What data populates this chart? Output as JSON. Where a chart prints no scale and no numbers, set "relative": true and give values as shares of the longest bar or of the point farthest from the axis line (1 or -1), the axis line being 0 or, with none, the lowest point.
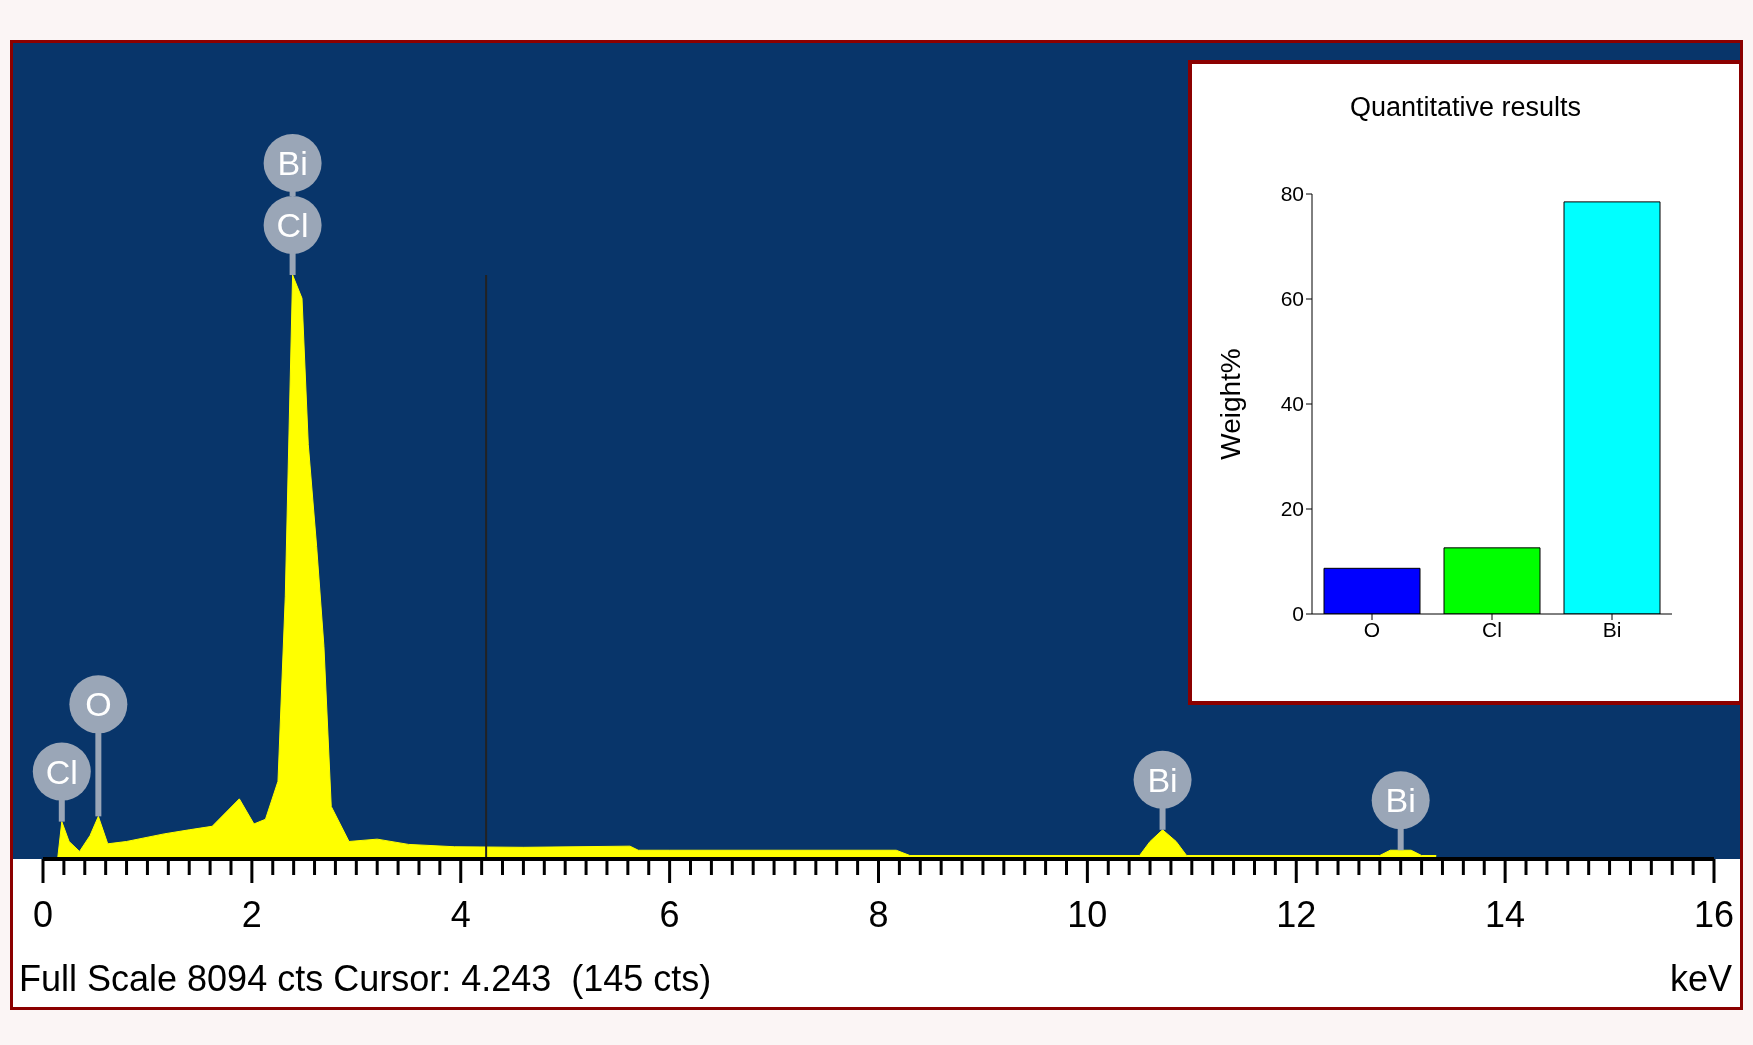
{
  "chart_data": [
    {
      "type": "area",
      "relative": true,
      "color": "#ffff00",
      "xlabel": "keV",
      "xlim": [
        0,
        16
      ],
      "x": [
        0.14,
        0.18,
        0.25,
        0.35,
        0.45,
        0.53,
        0.62,
        0.8,
        1.16,
        1.4,
        1.62,
        1.88,
        2.02,
        2.13,
        2.25,
        2.32,
        2.39,
        2.48,
        2.54,
        2.62,
        2.69,
        2.76,
        2.93,
        3.2,
        3.5,
        3.94,
        4.6,
        5.62,
        5.7,
        6.0,
        8.17,
        8.3,
        10.5,
        10.6,
        10.72,
        10.85,
        10.95,
        12.8,
        12.9,
        13.1,
        13.2,
        13.34
      ],
      "values": [
        0,
        0.064,
        0.03,
        0.013,
        0.04,
        0.073,
        0.026,
        0.03,
        0.043,
        0.05,
        0.056,
        0.103,
        0.06,
        0.068,
        0.133,
        0.45,
        1,
        0.96,
        0.71,
        0.535,
        0.364,
        0.09,
        0.03,
        0.034,
        0.025,
        0.021,
        0.02,
        0.022,
        0.015,
        0.015,
        0.015,
        0.006,
        0.006,
        0.03,
        0.05,
        0.03,
        0.006,
        0.006,
        0.015,
        0.015,
        0.006,
        0.006
      ],
      "xticks": [
        0,
        {
          "value": 0.2,
          "label": null
        },
        {
          "value": 0.4,
          "label": null
        },
        {
          "value": 0.6,
          "label": null
        },
        {
          "value": 0.8,
          "label": null
        },
        {
          "value": 1,
          "label": null
        },
        {
          "value": 1.2,
          "label": null
        },
        {
          "value": 1.4,
          "label": null
        },
        {
          "value": 1.6,
          "label": null
        },
        {
          "value": 1.8,
          "label": null
        },
        2,
        {
          "value": 2.2,
          "label": null
        },
        {
          "value": 2.4,
          "label": null
        },
        {
          "value": 2.6,
          "label": null
        },
        {
          "value": 2.8,
          "label": null
        },
        {
          "value": 3,
          "label": null
        },
        {
          "value": 3.2,
          "label": null
        },
        {
          "value": 3.4,
          "label": null
        },
        {
          "value": 3.6,
          "label": null
        },
        {
          "value": 3.8,
          "label": null
        },
        4,
        {
          "value": 4.2,
          "label": null
        },
        {
          "value": 4.4,
          "label": null
        },
        {
          "value": 4.6,
          "label": null
        },
        {
          "value": 4.8,
          "label": null
        },
        {
          "value": 5,
          "label": null
        },
        {
          "value": 5.2,
          "label": null
        },
        {
          "value": 5.4,
          "label": null
        },
        {
          "value": 5.6,
          "label": null
        },
        {
          "value": 5.8,
          "label": null
        },
        6,
        {
          "value": 6.2,
          "label": null
        },
        {
          "value": 6.4,
          "label": null
        },
        {
          "value": 6.6,
          "label": null
        },
        {
          "value": 6.8,
          "label": null
        },
        {
          "value": 7,
          "label": null
        },
        {
          "value": 7.2,
          "label": null
        },
        {
          "value": 7.4,
          "label": null
        },
        {
          "value": 7.6,
          "label": null
        },
        {
          "value": 7.8,
          "label": null
        },
        8,
        {
          "value": 8.2,
          "label": null
        },
        {
          "value": 8.4,
          "label": null
        },
        {
          "value": 8.6,
          "label": null
        },
        {
          "value": 8.8,
          "label": null
        },
        {
          "value": 9,
          "label": null
        },
        {
          "value": 9.2,
          "label": null
        },
        {
          "value": 9.4,
          "label": null
        },
        {
          "value": 9.6,
          "label": null
        },
        {
          "value": 9.8,
          "label": null
        },
        10,
        {
          "value": 10.2,
          "label": null
        },
        {
          "value": 10.4,
          "label": null
        },
        {
          "value": 10.6,
          "label": null
        },
        {
          "value": 10.8,
          "label": null
        },
        {
          "value": 11,
          "label": null
        },
        {
          "value": 11.2,
          "label": null
        },
        {
          "value": 11.4,
          "label": null
        },
        {
          "value": 11.6,
          "label": null
        },
        {
          "value": 11.8,
          "label": null
        },
        12,
        {
          "value": 12.2,
          "label": null
        },
        {
          "value": 12.4,
          "label": null
        },
        {
          "value": 12.6,
          "label": null
        },
        {
          "value": 12.8,
          "label": null
        },
        {
          "value": 13,
          "label": null
        },
        {
          "value": 13.2,
          "label": null
        },
        {
          "value": 13.4,
          "label": null
        },
        {
          "value": 13.6,
          "label": null
        },
        {
          "value": 13.8,
          "label": null
        },
        14,
        {
          "value": 14.2,
          "label": null
        },
        {
          "value": 14.4,
          "label": null
        },
        {
          "value": 14.6,
          "label": null
        },
        {
          "value": 14.8,
          "label": null
        },
        {
          "value": 15,
          "label": null
        },
        {
          "value": 15.2,
          "label": null
        },
        {
          "value": 15.4,
          "label": null
        },
        {
          "value": 15.6,
          "label": null
        },
        {
          "value": 15.8,
          "label": null
        },
        16
      ],
      "ref_lines": [
        {
          "axis": "x",
          "value": 4.243,
          "color": "#222222"
        }
      ],
      "annotations": [
        {
          "text": "Cl",
          "x": 0.18,
          "y": 0.064
        },
        {
          "text": "O",
          "x": 0.53,
          "y": 0.073
        },
        {
          "text": "Cl",
          "x": 2.39,
          "y": 1
        },
        {
          "text": "Bi",
          "x": 2.39,
          "y": 1
        },
        {
          "text": "Bi",
          "x": 10.72,
          "y": 0.05
        },
        {
          "text": "Bi",
          "x": 13.0,
          "y": 0.015
        },
        "Full Scale 8094 cts Cursor: 4.243  (145 cts)"
      ]
    },
    {
      "type": "bar",
      "title": "Quantitative results",
      "ylabel": "Weight%",
      "categories": [
        "O",
        "Cl",
        "Bi"
      ],
      "values": [
        8.7,
        12.6,
        78.5
      ],
      "colors": [
        "#0000ff",
        "#00ff00",
        "#00ffff"
      ],
      "ylim": [
        0,
        80
      ],
      "yticks": [
        0,
        20,
        40,
        60,
        80
      ]
    }
  ]
}
